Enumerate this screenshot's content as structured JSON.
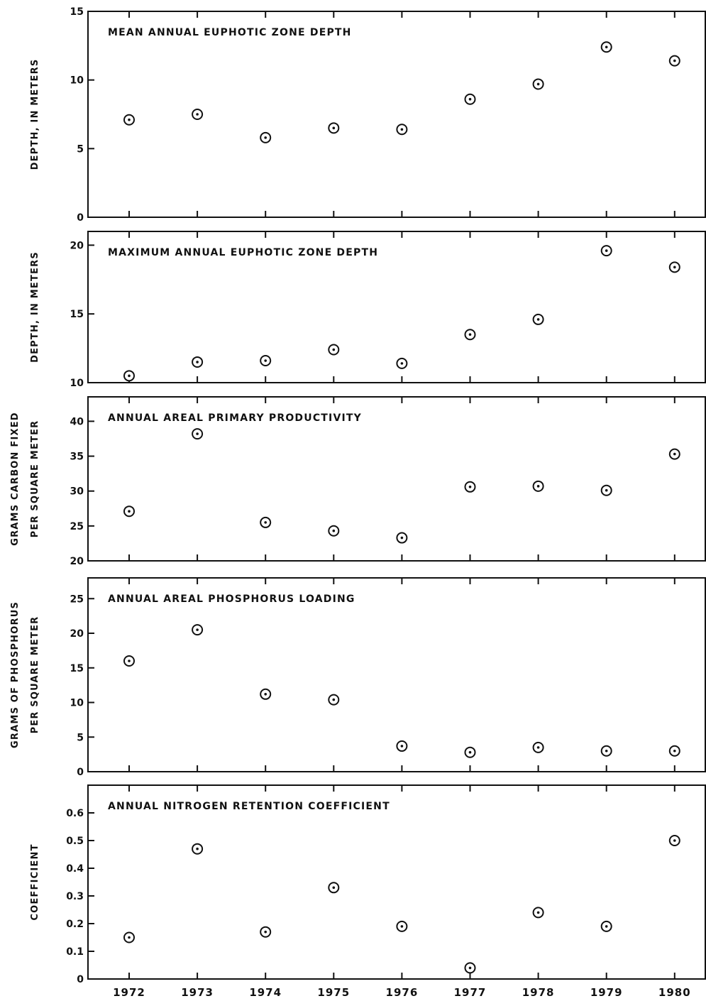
{
  "chart_data": [
    {
      "type": "scatter",
      "title": "MEAN ANNUAL EUPHOTIC ZONE DEPTH",
      "ylabel": [
        "DEPTH, IN METERS"
      ],
      "ylim": [
        0,
        15
      ],
      "yticks": [
        0,
        5,
        10,
        15
      ],
      "x": [
        1972,
        1973,
        1974,
        1975,
        1976,
        1977,
        1978,
        1979,
        1980
      ],
      "y": [
        7.1,
        7.5,
        5.8,
        6.5,
        6.4,
        8.6,
        9.7,
        12.4,
        11.4
      ]
    },
    {
      "type": "scatter",
      "title": "MAXIMUM ANNUAL EUPHOTIC ZONE DEPTH",
      "ylabel": [
        "DEPTH, IN METERS"
      ],
      "ylim": [
        10,
        21
      ],
      "yticks": [
        10,
        15,
        20
      ],
      "x": [
        1972,
        1973,
        1974,
        1975,
        1976,
        1977,
        1978,
        1979,
        1980
      ],
      "y": [
        10.5,
        11.5,
        11.6,
        12.4,
        11.4,
        13.5,
        14.6,
        19.6,
        18.4
      ]
    },
    {
      "type": "scatter",
      "title": "ANNUAL AREAL PRIMARY PRODUCTIVITY",
      "ylabel": [
        "GRAMS CARBON FIXED",
        "PER SQUARE METER"
      ],
      "ylim": [
        20,
        43.5
      ],
      "yticks": [
        20,
        25,
        30,
        35,
        40
      ],
      "x": [
        1972,
        1973,
        1974,
        1975,
        1976,
        1977,
        1978,
        1979,
        1980
      ],
      "y": [
        27.1,
        38.2,
        25.5,
        24.3,
        23.3,
        30.6,
        30.7,
        30.1,
        35.3
      ]
    },
    {
      "type": "scatter",
      "title": "ANNUAL AREAL PHOSPHORUS LOADING",
      "ylabel": [
        "GRAMS OF PHOSPHORUS",
        "PER SQUARE METER"
      ],
      "ylim": [
        0,
        28
      ],
      "yticks": [
        0,
        5,
        10,
        15,
        20,
        25
      ],
      "x": [
        1972,
        1973,
        1974,
        1975,
        1976,
        1977,
        1978,
        1979,
        1980
      ],
      "y": [
        16.0,
        20.5,
        11.2,
        10.4,
        3.7,
        2.8,
        3.5,
        3.0,
        3.0
      ]
    },
    {
      "type": "scatter",
      "title": "ANNUAL NITROGEN RETENTION COEFFICIENT",
      "ylabel": [
        "COEFFICIENT"
      ],
      "ylim": [
        0,
        0.7
      ],
      "yticks": [
        "0",
        "0.1",
        "0.2",
        "0.3",
        "0.4",
        "0.5",
        "0.6"
      ],
      "x": [
        1972,
        1973,
        1974,
        1975,
        1976,
        1977,
        1978,
        1979,
        1980
      ],
      "y": [
        0.15,
        0.47,
        0.17,
        0.33,
        0.19,
        0.04,
        0.24,
        0.19,
        0.5
      ]
    }
  ],
  "x_tick_labels": [
    "1972",
    "1973",
    "1974",
    "1975",
    "1976",
    "1977",
    "1978",
    "1979",
    "1980"
  ],
  "colors": {
    "ink": "#111111",
    "background": "#ffffff"
  }
}
